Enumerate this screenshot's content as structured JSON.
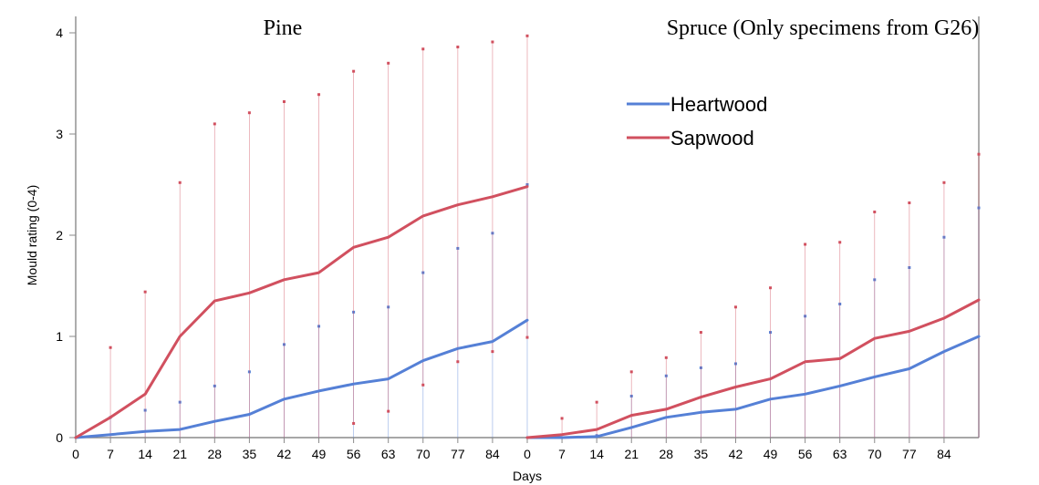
{
  "colors": {
    "heartwood": "#5580d6",
    "sapwood": "#d1505f",
    "axis": "#8a8a8a"
  },
  "chart_data": [
    {
      "type": "line",
      "title": "Pine",
      "xlabel": "Days",
      "ylabel": "Mould rating (0-4)",
      "ylim": [
        0,
        4.2
      ],
      "xlim": [
        0,
        91
      ],
      "x_ticks": [
        0,
        7,
        14,
        21,
        28,
        35,
        42,
        49,
        56,
        63,
        70,
        77,
        84
      ],
      "y_ticks": [
        0,
        1,
        2,
        3,
        4
      ],
      "grid": false,
      "legend": "none",
      "x": [
        0,
        7,
        14,
        21,
        28,
        35,
        42,
        49,
        56,
        63,
        70,
        77,
        84,
        91
      ],
      "series": [
        {
          "name": "Heartwood",
          "color_key": "heartwood",
          "values": [
            0,
            0.03,
            0.06,
            0.08,
            0.16,
            0.23,
            0.38,
            0.46,
            0.53,
            0.58,
            0.76,
            0.88,
            0.95,
            1.16
          ],
          "lower": [
            0,
            0,
            0,
            0,
            0,
            0,
            0,
            0,
            0,
            0,
            0,
            0,
            0,
            0
          ],
          "upper": [
            0,
            0.2,
            0.27,
            0.35,
            0.51,
            0.65,
            0.92,
            1.1,
            1.24,
            1.29,
            1.63,
            1.87,
            2.02,
            2.5
          ]
        },
        {
          "name": "Sapwood",
          "color_key": "sapwood",
          "values": [
            0,
            0.2,
            0.43,
            1.0,
            1.35,
            1.43,
            1.56,
            1.63,
            1.88,
            1.98,
            2.19,
            2.3,
            2.38,
            2.48
          ],
          "lower": [
            0,
            0,
            0,
            0,
            0,
            0,
            0,
            0,
            0.14,
            0.26,
            0.52,
            0.75,
            0.85,
            0.99
          ],
          "upper": [
            0,
            0.89,
            1.44,
            2.52,
            3.1,
            3.21,
            3.32,
            3.39,
            3.62,
            3.7,
            3.84,
            3.86,
            3.91,
            3.97
          ]
        }
      ]
    },
    {
      "type": "line",
      "title": "Spruce (Only specimens from G26)",
      "xlabel": "Days",
      "ylabel": "",
      "ylim": [
        0,
        4.2
      ],
      "xlim": [
        0,
        91
      ],
      "x_ticks": [
        0,
        7,
        14,
        21,
        28,
        35,
        42,
        49,
        56,
        63,
        70,
        77,
        84
      ],
      "grid": false,
      "legend": "top-center",
      "legend_entries": [
        "Heartwood",
        "Sapwood"
      ],
      "x": [
        0,
        7,
        14,
        21,
        28,
        35,
        42,
        49,
        56,
        63,
        70,
        77,
        84,
        91
      ],
      "series": [
        {
          "name": "Heartwood",
          "color_key": "heartwood",
          "values": [
            0,
            0,
            0.01,
            0.1,
            0.2,
            0.25,
            0.28,
            0.38,
            0.43,
            0.51,
            0.6,
            0.68,
            0.85,
            1.0
          ],
          "lower": [
            0,
            0,
            0,
            0,
            0,
            0,
            0,
            0,
            0,
            0,
            0,
            0,
            0,
            0
          ],
          "upper": [
            0,
            0,
            0.02,
            0.41,
            0.61,
            0.69,
            0.73,
            1.04,
            1.2,
            1.32,
            1.56,
            1.68,
            1.98,
            2.27
          ]
        },
        {
          "name": "Sapwood",
          "color_key": "sapwood",
          "values": [
            0,
            0.03,
            0.08,
            0.22,
            0.28,
            0.4,
            0.5,
            0.58,
            0.75,
            0.78,
            0.98,
            1.05,
            1.18,
            1.36
          ],
          "lower": [
            0,
            0,
            0,
            0,
            0,
            0,
            0,
            0,
            0,
            0,
            0,
            0,
            0,
            0
          ],
          "upper": [
            0,
            0.19,
            0.35,
            0.65,
            0.79,
            1.04,
            1.29,
            1.48,
            1.91,
            1.93,
            2.23,
            2.32,
            2.52,
            2.8
          ]
        }
      ]
    }
  ]
}
